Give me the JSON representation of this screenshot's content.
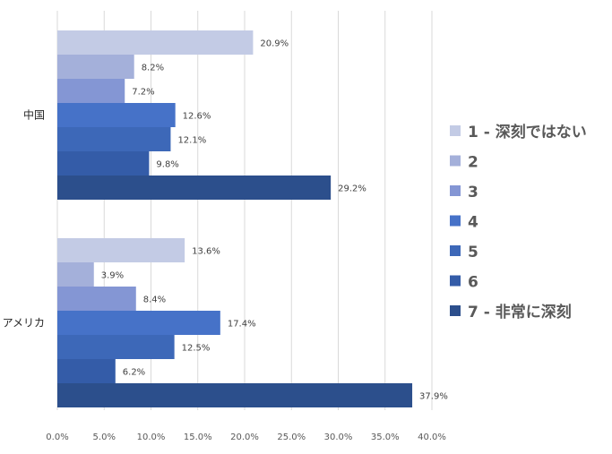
{
  "chart_data": {
    "type": "bar",
    "orientation": "horizontal",
    "categories": [
      "中国",
      "アメリカ"
    ],
    "series": [
      {
        "name": "1 - 深刻ではない",
        "color": "#c3cbe5",
        "values": [
          20.9,
          13.6
        ]
      },
      {
        "name": "2",
        "color": "#a4b0da",
        "values": [
          8.2,
          3.9
        ]
      },
      {
        "name": "3",
        "color": "#8496d4",
        "values": [
          7.2,
          8.4
        ]
      },
      {
        "name": "4",
        "color": "#4672c8",
        "values": [
          12.6,
          17.4
        ]
      },
      {
        "name": "5",
        "color": "#3d68b8",
        "values": [
          12.1,
          12.5
        ]
      },
      {
        "name": "6",
        "color": "#345ca8",
        "values": [
          9.8,
          6.2
        ]
      },
      {
        "name": "7 - 非常に深刻",
        "color": "#2c4f8c",
        "values": [
          29.2,
          37.9
        ]
      }
    ],
    "data_labels": [
      [
        "20.9%",
        "8.2%",
        "7.2%",
        "12.6%",
        "12.1%",
        "9.8%",
        "29.2%"
      ],
      [
        "13.6%",
        "3.9%",
        "8.4%",
        "17.4%",
        "12.5%",
        "6.2%",
        "37.9%"
      ]
    ],
    "xlim": [
      0,
      40
    ],
    "x_ticks": [
      0,
      5,
      10,
      15,
      20,
      25,
      30,
      35,
      40
    ],
    "x_tick_labels": [
      "0.0%",
      "5.0%",
      "10.0%",
      "15.0%",
      "20.0%",
      "25.0%",
      "30.0%",
      "35.0%",
      "40.0%"
    ],
    "grid": "vertical",
    "legend_position": "right"
  }
}
